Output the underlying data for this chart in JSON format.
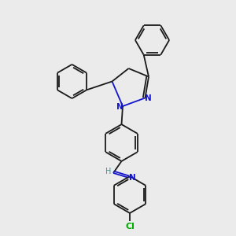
{
  "background_color": "#ebebeb",
  "bond_color": "#1a1a1a",
  "N_color": "#1414cc",
  "Cl_color": "#00aa00",
  "H_color": "#339999",
  "line_width": 1.3,
  "figsize": [
    3.0,
    3.0
  ],
  "dpi": 100,
  "xlim": [
    0,
    10
  ],
  "ylim": [
    0,
    10
  ]
}
